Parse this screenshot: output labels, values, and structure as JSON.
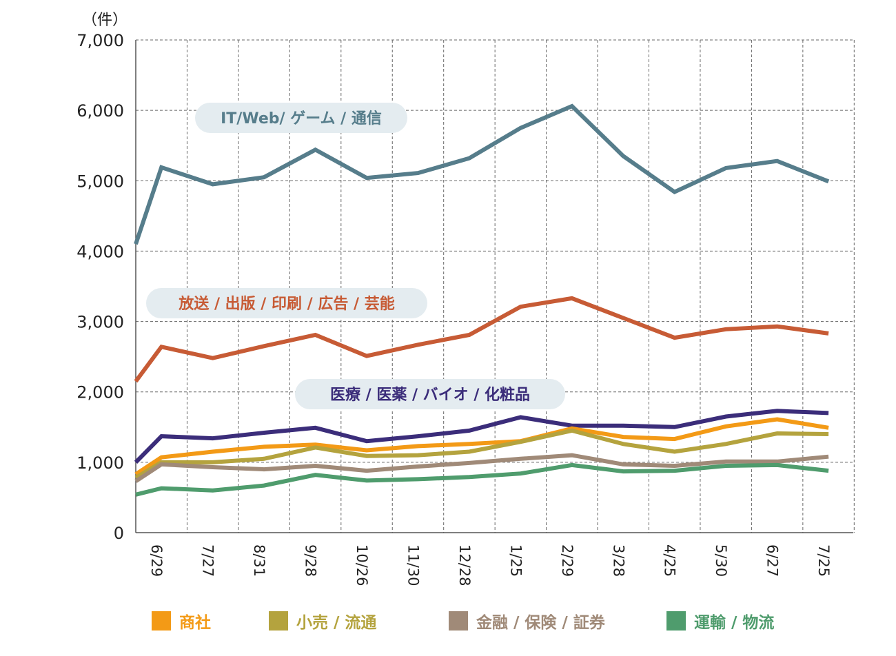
{
  "chart_data": {
    "type": "line",
    "unit_label": "（件）",
    "categories": [
      "6/29",
      "7/27",
      "8/31",
      "9/28",
      "10/26",
      "11/30",
      "12/28",
      "1/25",
      "2/29",
      "3/28",
      "4/25",
      "5/30",
      "6/27",
      "7/25"
    ],
    "ylim": [
      0,
      7000
    ],
    "yticks": [
      0,
      1000,
      2000,
      3000,
      4000,
      5000,
      6000,
      7000
    ],
    "ytick_labels": [
      "0",
      "1,000",
      "2,000",
      "3,000",
      "4,000",
      "5,000",
      "6,000",
      "7,000"
    ],
    "grid": true,
    "series": [
      {
        "name": "IT/Web/ ゲーム / 通信",
        "color": "#567d8b",
        "start": 4100,
        "values": [
          5190,
          4950,
          5050,
          5440,
          5040,
          5110,
          5320,
          5750,
          6060,
          5350,
          4840,
          5180,
          5280,
          4990
        ]
      },
      {
        "name": "放送 / 出版 / 印刷 / 広告 / 芸能",
        "color": "#c75b35",
        "start": 2150,
        "values": [
          2640,
          2480,
          2650,
          2810,
          2510,
          2670,
          2810,
          3210,
          3330,
          3050,
          2770,
          2890,
          2930,
          2830
        ]
      },
      {
        "name": "医療 / 医薬 / バイオ / 化粧品",
        "color": "#3b2d7a",
        "start": 1000,
        "values": [
          1370,
          1340,
          1420,
          1490,
          1300,
          1370,
          1450,
          1640,
          1520,
          1520,
          1500,
          1650,
          1730,
          1700
        ]
      },
      {
        "name": "商社",
        "color": "#f39a16",
        "start": 830,
        "values": [
          1070,
          1150,
          1220,
          1250,
          1170,
          1230,
          1260,
          1300,
          1480,
          1360,
          1330,
          1510,
          1610,
          1490
        ]
      },
      {
        "name": "小売 / 流通",
        "color": "#b4a33e",
        "start": 780,
        "values": [
          1000,
          1000,
          1050,
          1210,
          1090,
          1100,
          1150,
          1290,
          1450,
          1260,
          1150,
          1260,
          1410,
          1400
        ]
      },
      {
        "name": "金融 / 保険 / 証券",
        "color": "#a08a78",
        "start": 730,
        "values": [
          970,
          930,
          900,
          950,
          880,
          940,
          990,
          1050,
          1100,
          970,
          950,
          1010,
          1010,
          1080
        ]
      },
      {
        "name": "運輸 / 物流",
        "color": "#4f9c6d",
        "start": 540,
        "values": [
          630,
          600,
          670,
          820,
          740,
          760,
          790,
          840,
          960,
          870,
          880,
          950,
          960,
          880
        ]
      }
    ],
    "callouts": [
      {
        "text": "IT/Web/ ゲーム / 通信",
        "text_color": "#567d8b"
      },
      {
        "text": "放送 / 出版 / 印刷 / 広告 / 芸能",
        "text_color": "#c75b35"
      },
      {
        "text": "医療 / 医薬 / バイオ / 化粧品",
        "text_color": "#3b2d7a"
      }
    ],
    "legend": [
      {
        "label": "商社",
        "color": "#f39a16",
        "text_color": "#f39a16"
      },
      {
        "label": "小売 / 流通",
        "color": "#b4a33e",
        "text_color": "#b4a33e"
      },
      {
        "label": "金融 / 保険 / 証券",
        "color": "#a08a78",
        "text_color": "#a08a78"
      },
      {
        "label": "運輸 / 物流",
        "color": "#4f9c6d",
        "text_color": "#4f9c6d"
      }
    ],
    "callout_bg": "#e4ecf0",
    "grid_color": "#666666",
    "axis_color": "#555555"
  }
}
